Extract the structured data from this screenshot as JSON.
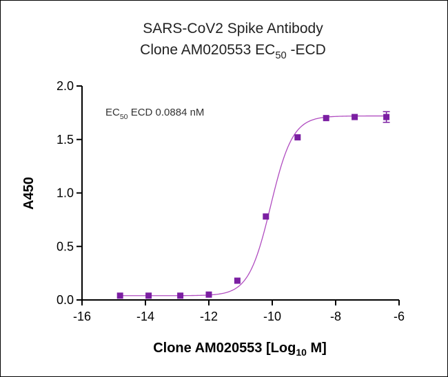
{
  "chart_data": {
    "type": "scatter",
    "title_line1": "SARS-CoV2 Spike Antibody",
    "title_line2_prefix": "Clone AM020553 EC",
    "title_line2_sub": "50",
    "title_line2_suffix": " -ECD",
    "xlabel_prefix": "Clone AM020553 [Log",
    "xlabel_sub": "10",
    "xlabel_suffix": " M]",
    "ylabel": "A450",
    "xlim": [
      -16,
      -6
    ],
    "ylim": [
      0,
      2.0
    ],
    "x_ticks": [
      -16,
      -14,
      -12,
      -10,
      -8,
      -6
    ],
    "x_tick_labels": [
      "-16",
      "-14",
      "-12",
      "-10",
      "-8",
      "-6"
    ],
    "y_ticks": [
      0,
      0.5,
      1.0,
      1.5,
      2.0
    ],
    "y_tick_labels": [
      "0.0",
      "0.5",
      "1.0",
      "1.5",
      "2.0"
    ],
    "annotation_prefix": "EC",
    "annotation_sub": "50",
    "annotation_suffix": "  ECD 0.0884 nM",
    "marker_color": "#7b1fa2",
    "curve_color": "#b04cc0",
    "series": [
      {
        "x": [
          -14.8,
          -13.9,
          -12.9,
          -12.0,
          -11.1,
          -10.2,
          -9.2,
          -8.3,
          -7.4,
          -6.4
        ],
        "y": [
          0.04,
          0.04,
          0.04,
          0.05,
          0.18,
          0.78,
          1.52,
          1.7,
          1.71,
          1.71
        ],
        "error": [
          0,
          0,
          0,
          0,
          0,
          0,
          0,
          0,
          0,
          0.05
        ]
      }
    ],
    "fit": {
      "bottom": 0.04,
      "top": 1.72,
      "log_ec50": -10.05,
      "hill": 1.25
    },
    "grid": false,
    "legend": "none"
  }
}
